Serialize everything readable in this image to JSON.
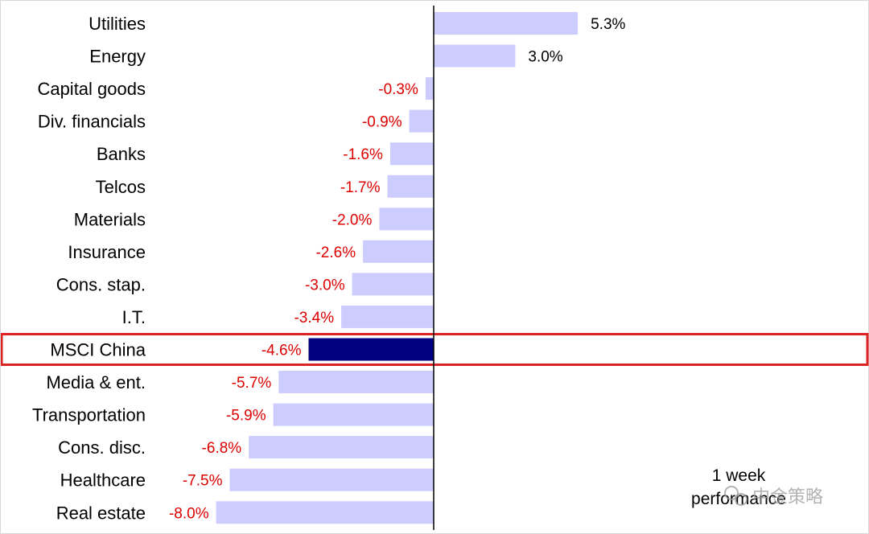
{
  "chart_data": {
    "type": "bar",
    "orientation": "horizontal",
    "categories": [
      "Utilities",
      "Energy",
      "Capital goods",
      "Div. financials",
      "Banks",
      "Telcos",
      "Materials",
      "Insurance",
      "Cons. stap.",
      "I.T.",
      "MSCI China",
      "Media & ent.",
      "Transportation",
      "Cons. disc.",
      "Healthcare",
      "Real estate"
    ],
    "values": [
      5.3,
      3.0,
      -0.3,
      -0.9,
      -1.6,
      -1.7,
      -2.0,
      -2.6,
      -3.0,
      -3.4,
      -4.6,
      -5.7,
      -5.9,
      -6.8,
      -7.5,
      -8.0
    ],
    "value_labels": [
      "5.3%",
      "3.0%",
      "-0.3%",
      "-0.9%",
      "-1.6%",
      "-1.7%",
      "-2.0%",
      "-2.6%",
      "-3.0%",
      "-3.4%",
      "-4.6%",
      "-5.7%",
      "-5.9%",
      "-6.8%",
      "-7.5%",
      "-8.0%"
    ],
    "highlight_category": "MSCI China",
    "xlim": [
      -9.5,
      16
    ],
    "grid": false,
    "legend": "none",
    "annotation": [
      "1 week",
      "performance"
    ],
    "title": "",
    "xlabel": "",
    "ylabel": ""
  },
  "colors": {
    "bar": "#ccccff",
    "highlight_bar": "#000080",
    "highlight_box": "#dd2222",
    "negative_label": "#dd0000",
    "positive_label": "#000000",
    "zero_axis": "#000000"
  },
  "watermark": "中金策略"
}
